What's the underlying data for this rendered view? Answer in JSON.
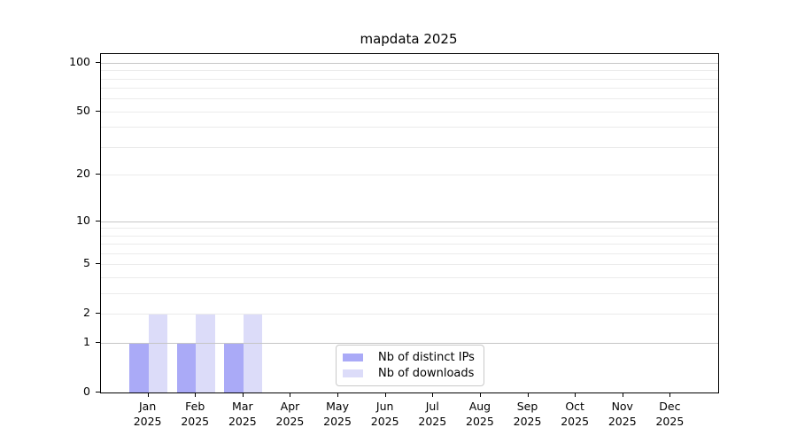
{
  "window": {
    "background": "#ffffff"
  },
  "chart_data": {
    "type": "bar",
    "title": "mapdata 2025",
    "xlabel": "",
    "ylabel": "",
    "categories": [
      "Jan",
      "Feb",
      "Mar",
      "Apr",
      "May",
      "Jun",
      "Jul",
      "Aug",
      "Sep",
      "Oct",
      "Nov",
      "Dec"
    ],
    "x_tick_second_line": "2025",
    "series": [
      {
        "name": "Nb of distinct IPs",
        "color": "#aaaaf7",
        "values": [
          1,
          1,
          1,
          0,
          0,
          0,
          0,
          0,
          0,
          0,
          0,
          0
        ]
      },
      {
        "name": "Nb of downloads",
        "color": "#dcdcf9",
        "values": [
          2,
          2,
          2,
          0,
          0,
          0,
          0,
          0,
          0,
          0,
          0,
          0
        ]
      }
    ],
    "yscale": "log1p",
    "ylim": [
      0,
      113
    ],
    "yticks": [
      0,
      1,
      2,
      5,
      10,
      20,
      50,
      100
    ],
    "grid": {
      "decade_values": [
        1,
        10,
        100
      ],
      "minor_values": [
        2,
        3,
        4,
        5,
        6,
        7,
        8,
        9,
        20,
        30,
        40,
        50,
        60,
        70,
        80,
        90
      ],
      "decade_color": "#c6c6c6",
      "minor_color": "#ebebeb",
      "grid_above_bars": true
    },
    "legend_position": "lower center",
    "axis_color": "#000000",
    "background_color": "#ffffff"
  }
}
